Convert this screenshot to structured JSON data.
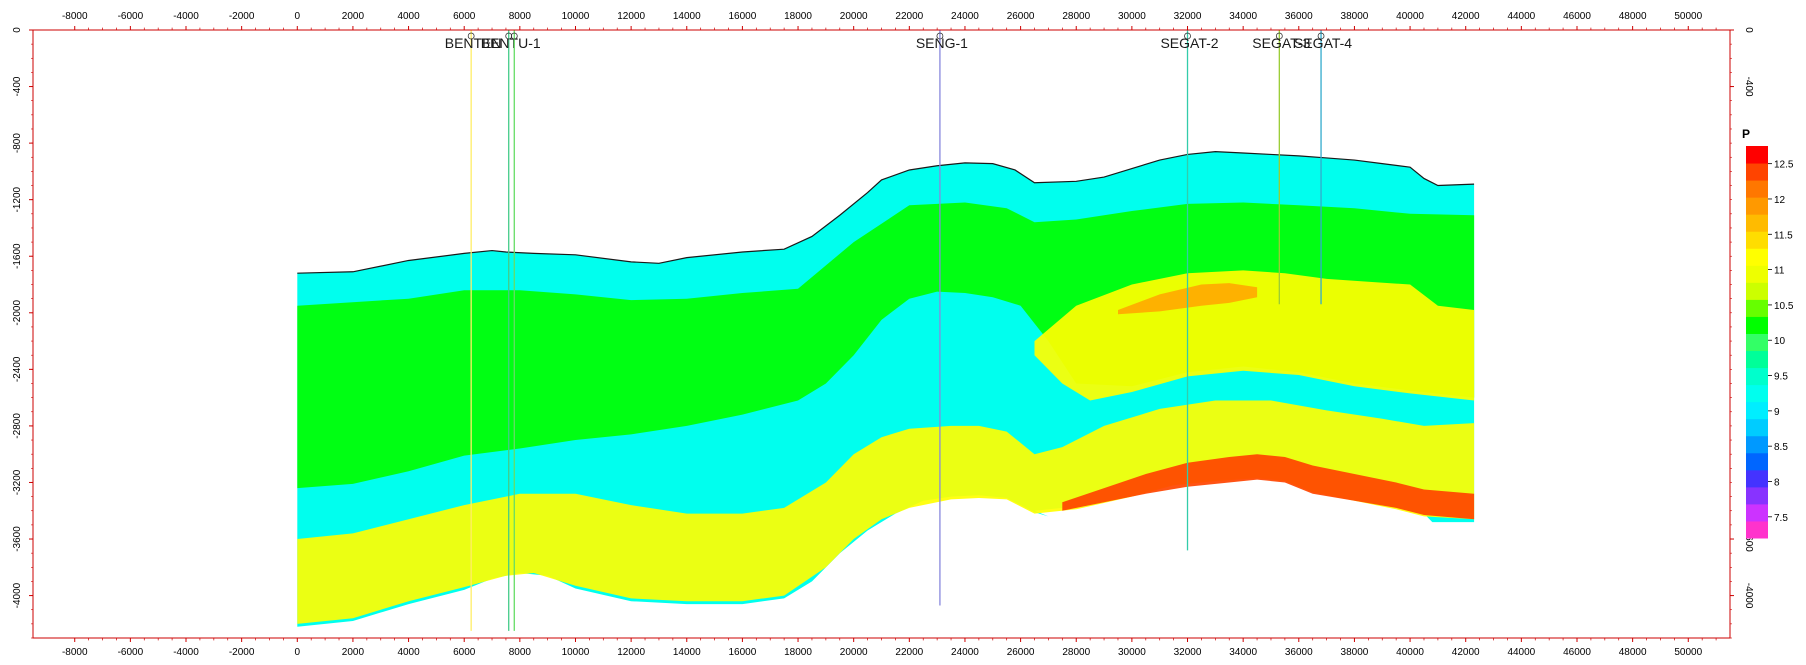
{
  "chart_data": {
    "type": "heatmap",
    "title": "",
    "xlabel": "",
    "ylabel": "",
    "xlim": [
      -9500,
      51500
    ],
    "ylim": [
      0,
      4300
    ],
    "x_ticks": [
      -8000,
      -6000,
      -4000,
      -2000,
      0,
      2000,
      4000,
      6000,
      8000,
      10000,
      12000,
      14000,
      16000,
      18000,
      20000,
      22000,
      24000,
      26000,
      28000,
      30000,
      32000,
      34000,
      36000,
      38000,
      40000,
      42000,
      44000,
      46000,
      48000,
      50000
    ],
    "x_tick_labels": [
      "-8000",
      "-6000",
      "-4000",
      "-2000",
      "0",
      "2000",
      "4000",
      "6000",
      "8000",
      "10000",
      "12000",
      "14000",
      "16000",
      "18000",
      "20000",
      "22000",
      "24000",
      "26000",
      "28000",
      "30000",
      "32000",
      "34000",
      "36000",
      "38000",
      "40000",
      "42000",
      "44000",
      "46000",
      "48000",
      "50000"
    ],
    "y_ticks_left": [
      0,
      400,
      800,
      1200,
      1600,
      2000,
      2400,
      2800,
      3200,
      3600,
      4000
    ],
    "y_tick_labels_left": [
      "0",
      "-400",
      "-800",
      "-1200",
      "-1600",
      "-2000",
      "-2400",
      "-2800",
      "-3200",
      "-3600",
      "-4000"
    ],
    "y_ticks_right": [
      0,
      400,
      3600,
      4000
    ],
    "y_tick_labels_right": [
      "0",
      "-400",
      "-3600",
      "-4000"
    ],
    "colorbar": {
      "title": "P",
      "min": 7.2,
      "max": 12.75,
      "ticks": [
        7.5,
        8,
        8.5,
        9,
        9.5,
        10,
        10.5,
        11,
        11.5,
        12,
        12.5
      ],
      "tick_labels": [
        "7.5",
        "8",
        "8.5",
        "9",
        "9.5",
        "10",
        "10.5",
        "11",
        "11.5",
        "12",
        "12.5"
      ],
      "colors": [
        "#ff33cc",
        "#cc33ff",
        "#8833ff",
        "#4433ff",
        "#0066ff",
        "#0099ff",
        "#00ccff",
        "#00eeff",
        "#00ffee",
        "#00ffcc",
        "#00ff99",
        "#33ff66",
        "#00ff00",
        "#66ff00",
        "#ccff00",
        "#eeff00",
        "#ffff00",
        "#ffdd00",
        "#ffbb00",
        "#ff9900",
        "#ff7700",
        "#ff4400",
        "#ff0000"
      ]
    },
    "top_surface": [
      [
        0,
        1720
      ],
      [
        2000,
        1710
      ],
      [
        4000,
        1630
      ],
      [
        6000,
        1580
      ],
      [
        7000,
        1560
      ],
      [
        7500,
        1570
      ],
      [
        8500,
        1580
      ],
      [
        10000,
        1590
      ],
      [
        12000,
        1640
      ],
      [
        13000,
        1650
      ],
      [
        14000,
        1610
      ],
      [
        16000,
        1570
      ],
      [
        17500,
        1550
      ],
      [
        18500,
        1460
      ],
      [
        19500,
        1310
      ],
      [
        20500,
        1150
      ],
      [
        21000,
        1060
      ],
      [
        22000,
        990
      ],
      [
        23000,
        960
      ],
      [
        24000,
        940
      ],
      [
        25000,
        945
      ],
      [
        25800,
        990
      ],
      [
        26500,
        1080
      ],
      [
        28000,
        1070
      ],
      [
        29000,
        1040
      ],
      [
        30000,
        980
      ],
      [
        31000,
        920
      ],
      [
        32000,
        880
      ],
      [
        33000,
        860
      ],
      [
        34000,
        870
      ],
      [
        35000,
        880
      ],
      [
        36000,
        890
      ],
      [
        37000,
        905
      ],
      [
        38000,
        920
      ],
      [
        39000,
        945
      ],
      [
        40000,
        970
      ],
      [
        40500,
        1050
      ],
      [
        41000,
        1100
      ],
      [
        42300,
        1090
      ]
    ],
    "bottom_surface": [
      [
        0,
        4220
      ],
      [
        2000,
        4180
      ],
      [
        4000,
        4060
      ],
      [
        6000,
        3960
      ],
      [
        7000,
        3880
      ],
      [
        8000,
        3840
      ],
      [
        9000,
        3860
      ],
      [
        10000,
        3950
      ],
      [
        12000,
        4040
      ],
      [
        14000,
        4060
      ],
      [
        16000,
        4060
      ],
      [
        17500,
        4020
      ],
      [
        18500,
        3900
      ],
      [
        19500,
        3700
      ],
      [
        20500,
        3540
      ],
      [
        21500,
        3420
      ],
      [
        22500,
        3330
      ],
      [
        23500,
        3300
      ],
      [
        24500,
        3290
      ],
      [
        25500,
        3310
      ],
      [
        26500,
        3410
      ],
      [
        27000,
        3440
      ]
    ],
    "basement_line": [
      [
        26500,
        3400
      ],
      [
        28000,
        3370
      ],
      [
        30000,
        3290
      ],
      [
        31500,
        3210
      ],
      [
        33000,
        3180
      ],
      [
        34500,
        3160
      ],
      [
        35500,
        3180
      ],
      [
        36500,
        3260
      ],
      [
        38000,
        3320
      ],
      [
        39500,
        3380
      ],
      [
        40500,
        3420
      ],
      [
        40800,
        3480
      ],
      [
        42300,
        3480
      ]
    ],
    "layers": [
      {
        "value": 9.9,
        "color": "#00ff00",
        "top": [
          [
            0,
            1950
          ],
          [
            4000,
            1900
          ],
          [
            6000,
            1840
          ],
          [
            8000,
            1840
          ],
          [
            10000,
            1870
          ],
          [
            12000,
            1910
          ],
          [
            14000,
            1900
          ],
          [
            16000,
            1860
          ],
          [
            18000,
            1830
          ],
          [
            20000,
            1500
          ],
          [
            22000,
            1240
          ],
          [
            24000,
            1220
          ],
          [
            25500,
            1260
          ],
          [
            26500,
            1360
          ],
          [
            28000,
            1340
          ],
          [
            30000,
            1280
          ],
          [
            32000,
            1230
          ],
          [
            34000,
            1220
          ],
          [
            36000,
            1240
          ],
          [
            38000,
            1260
          ],
          [
            40000,
            1300
          ],
          [
            42300,
            1310
          ]
        ],
        "bottom": [
          [
            0,
            3240
          ],
          [
            2000,
            3210
          ],
          [
            4000,
            3120
          ],
          [
            6000,
            3010
          ],
          [
            8000,
            2960
          ],
          [
            10000,
            2900
          ],
          [
            12000,
            2860
          ],
          [
            14000,
            2800
          ],
          [
            16000,
            2720
          ],
          [
            18000,
            2620
          ],
          [
            19000,
            2500
          ],
          [
            20000,
            2300
          ],
          [
            21000,
            2050
          ],
          [
            22000,
            1900
          ],
          [
            23000,
            1850
          ],
          [
            24000,
            1860
          ],
          [
            25000,
            1890
          ],
          [
            26000,
            1950
          ],
          [
            27000,
            2200
          ],
          [
            28000,
            2500
          ],
          [
            30000,
            2520
          ],
          [
            32000,
            2420
          ],
          [
            34000,
            2380
          ],
          [
            36000,
            2420
          ],
          [
            38000,
            2500
          ],
          [
            40000,
            2550
          ],
          [
            42300,
            2600
          ]
        ]
      },
      {
        "value": 10.6,
        "color": "#ffff00",
        "top": [
          [
            0,
            3600
          ],
          [
            2000,
            3560
          ],
          [
            4000,
            3460
          ],
          [
            6000,
            3360
          ],
          [
            8000,
            3280
          ],
          [
            10000,
            3280
          ],
          [
            12000,
            3360
          ],
          [
            14000,
            3420
          ],
          [
            16000,
            3420
          ],
          [
            17500,
            3380
          ],
          [
            19000,
            3200
          ],
          [
            20000,
            3000
          ],
          [
            21000,
            2880
          ],
          [
            22000,
            2820
          ],
          [
            23500,
            2800
          ],
          [
            24500,
            2800
          ],
          [
            25500,
            2840
          ],
          [
            26500,
            3000
          ],
          [
            27500,
            2950
          ],
          [
            29000,
            2800
          ],
          [
            31000,
            2680
          ],
          [
            33000,
            2620
          ],
          [
            35000,
            2620
          ],
          [
            37000,
            2690
          ],
          [
            39000,
            2750
          ],
          [
            40500,
            2800
          ],
          [
            42300,
            2780
          ]
        ],
        "bottom": [
          [
            0,
            4200
          ],
          [
            2000,
            4160
          ],
          [
            4000,
            4040
          ],
          [
            6000,
            3940
          ],
          [
            7500,
            3860
          ],
          [
            8500,
            3840
          ],
          [
            10000,
            3930
          ],
          [
            12000,
            4020
          ],
          [
            14000,
            4040
          ],
          [
            16000,
            4040
          ],
          [
            17500,
            4000
          ],
          [
            19000,
            3800
          ],
          [
            20000,
            3600
          ],
          [
            21000,
            3460
          ],
          [
            22000,
            3380
          ],
          [
            23500,
            3320
          ],
          [
            24500,
            3310
          ],
          [
            25500,
            3320
          ],
          [
            26500,
            3420
          ],
          [
            28000,
            3390
          ],
          [
            30000,
            3300
          ],
          [
            31500,
            3220
          ],
          [
            33000,
            3190
          ],
          [
            34500,
            3170
          ],
          [
            35500,
            3190
          ],
          [
            36500,
            3270
          ],
          [
            38000,
            3330
          ],
          [
            39500,
            3390
          ],
          [
            40500,
            3440
          ],
          [
            42300,
            3460
          ]
        ]
      },
      {
        "value": 12.4,
        "color": "#ff4400",
        "top": [
          [
            27500,
            3340
          ],
          [
            29000,
            3240
          ],
          [
            30500,
            3140
          ],
          [
            32000,
            3060
          ],
          [
            33500,
            3020
          ],
          [
            34500,
            3000
          ],
          [
            35500,
            3020
          ],
          [
            36500,
            3080
          ],
          [
            38000,
            3140
          ],
          [
            39500,
            3200
          ],
          [
            40500,
            3250
          ],
          [
            42300,
            3280
          ]
        ],
        "bottom": [
          [
            27500,
            3400
          ],
          [
            29000,
            3340
          ],
          [
            30500,
            3280
          ],
          [
            32000,
            3230
          ],
          [
            33500,
            3200
          ],
          [
            34500,
            3180
          ],
          [
            35500,
            3200
          ],
          [
            36500,
            3280
          ],
          [
            38000,
            3330
          ],
          [
            39500,
            3380
          ],
          [
            40500,
            3430
          ],
          [
            42300,
            3460
          ]
        ]
      },
      {
        "value": 11.1,
        "color": "#ffff00",
        "top": [
          [
            26500,
            2200
          ],
          [
            28000,
            1950
          ],
          [
            30000,
            1800
          ],
          [
            32000,
            1720
          ],
          [
            34000,
            1700
          ],
          [
            35500,
            1720
          ],
          [
            37000,
            1760
          ],
          [
            38500,
            1780
          ],
          [
            40000,
            1800
          ],
          [
            41000,
            1950
          ],
          [
            42300,
            1980
          ]
        ],
        "bottom": [
          [
            26500,
            2300
          ],
          [
            27500,
            2500
          ],
          [
            28500,
            2620
          ],
          [
            30000,
            2560
          ],
          [
            32000,
            2450
          ],
          [
            34000,
            2410
          ],
          [
            36000,
            2440
          ],
          [
            38000,
            2520
          ],
          [
            40000,
            2570
          ],
          [
            42300,
            2620
          ]
        ]
      },
      {
        "value": 12.0,
        "color": "#ffaa00",
        "top": [
          [
            29500,
            1980
          ],
          [
            31000,
            1870
          ],
          [
            32500,
            1800
          ],
          [
            33500,
            1790
          ],
          [
            34500,
            1820
          ]
        ],
        "bottom": [
          [
            29500,
            2010
          ],
          [
            31000,
            1990
          ],
          [
            32500,
            1950
          ],
          [
            33500,
            1930
          ],
          [
            34500,
            1890
          ]
        ]
      }
    ],
    "wells": [
      {
        "name": "BENTEN",
        "x": 6250,
        "y_top": 0,
        "y_bottom": 4250,
        "color": "#ffee66"
      },
      {
        "name": "BENTU-1",
        "x": 7600,
        "y_top": 0,
        "y_bottom": 4250,
        "color": "#44cc88"
      },
      {
        "name": "",
        "x": 7800,
        "y_top": 0,
        "y_bottom": 4250,
        "color": "#66dd66"
      },
      {
        "name": "SENG-1",
        "x": 23100,
        "y_top": 0,
        "y_bottom": 4070,
        "color": "#8888dd"
      },
      {
        "name": "SEGAT-2",
        "x": 32000,
        "y_top": 0,
        "y_bottom": 3680,
        "color": "#33ccaa"
      },
      {
        "name": "SEGAT-3",
        "x": 35300,
        "y_top": 0,
        "y_bottom": 1940,
        "color": "#99cc33"
      },
      {
        "name": "SEGAT-4",
        "x": 36800,
        "y_top": 0,
        "y_bottom": 1940,
        "color": "#33aacc"
      }
    ]
  }
}
